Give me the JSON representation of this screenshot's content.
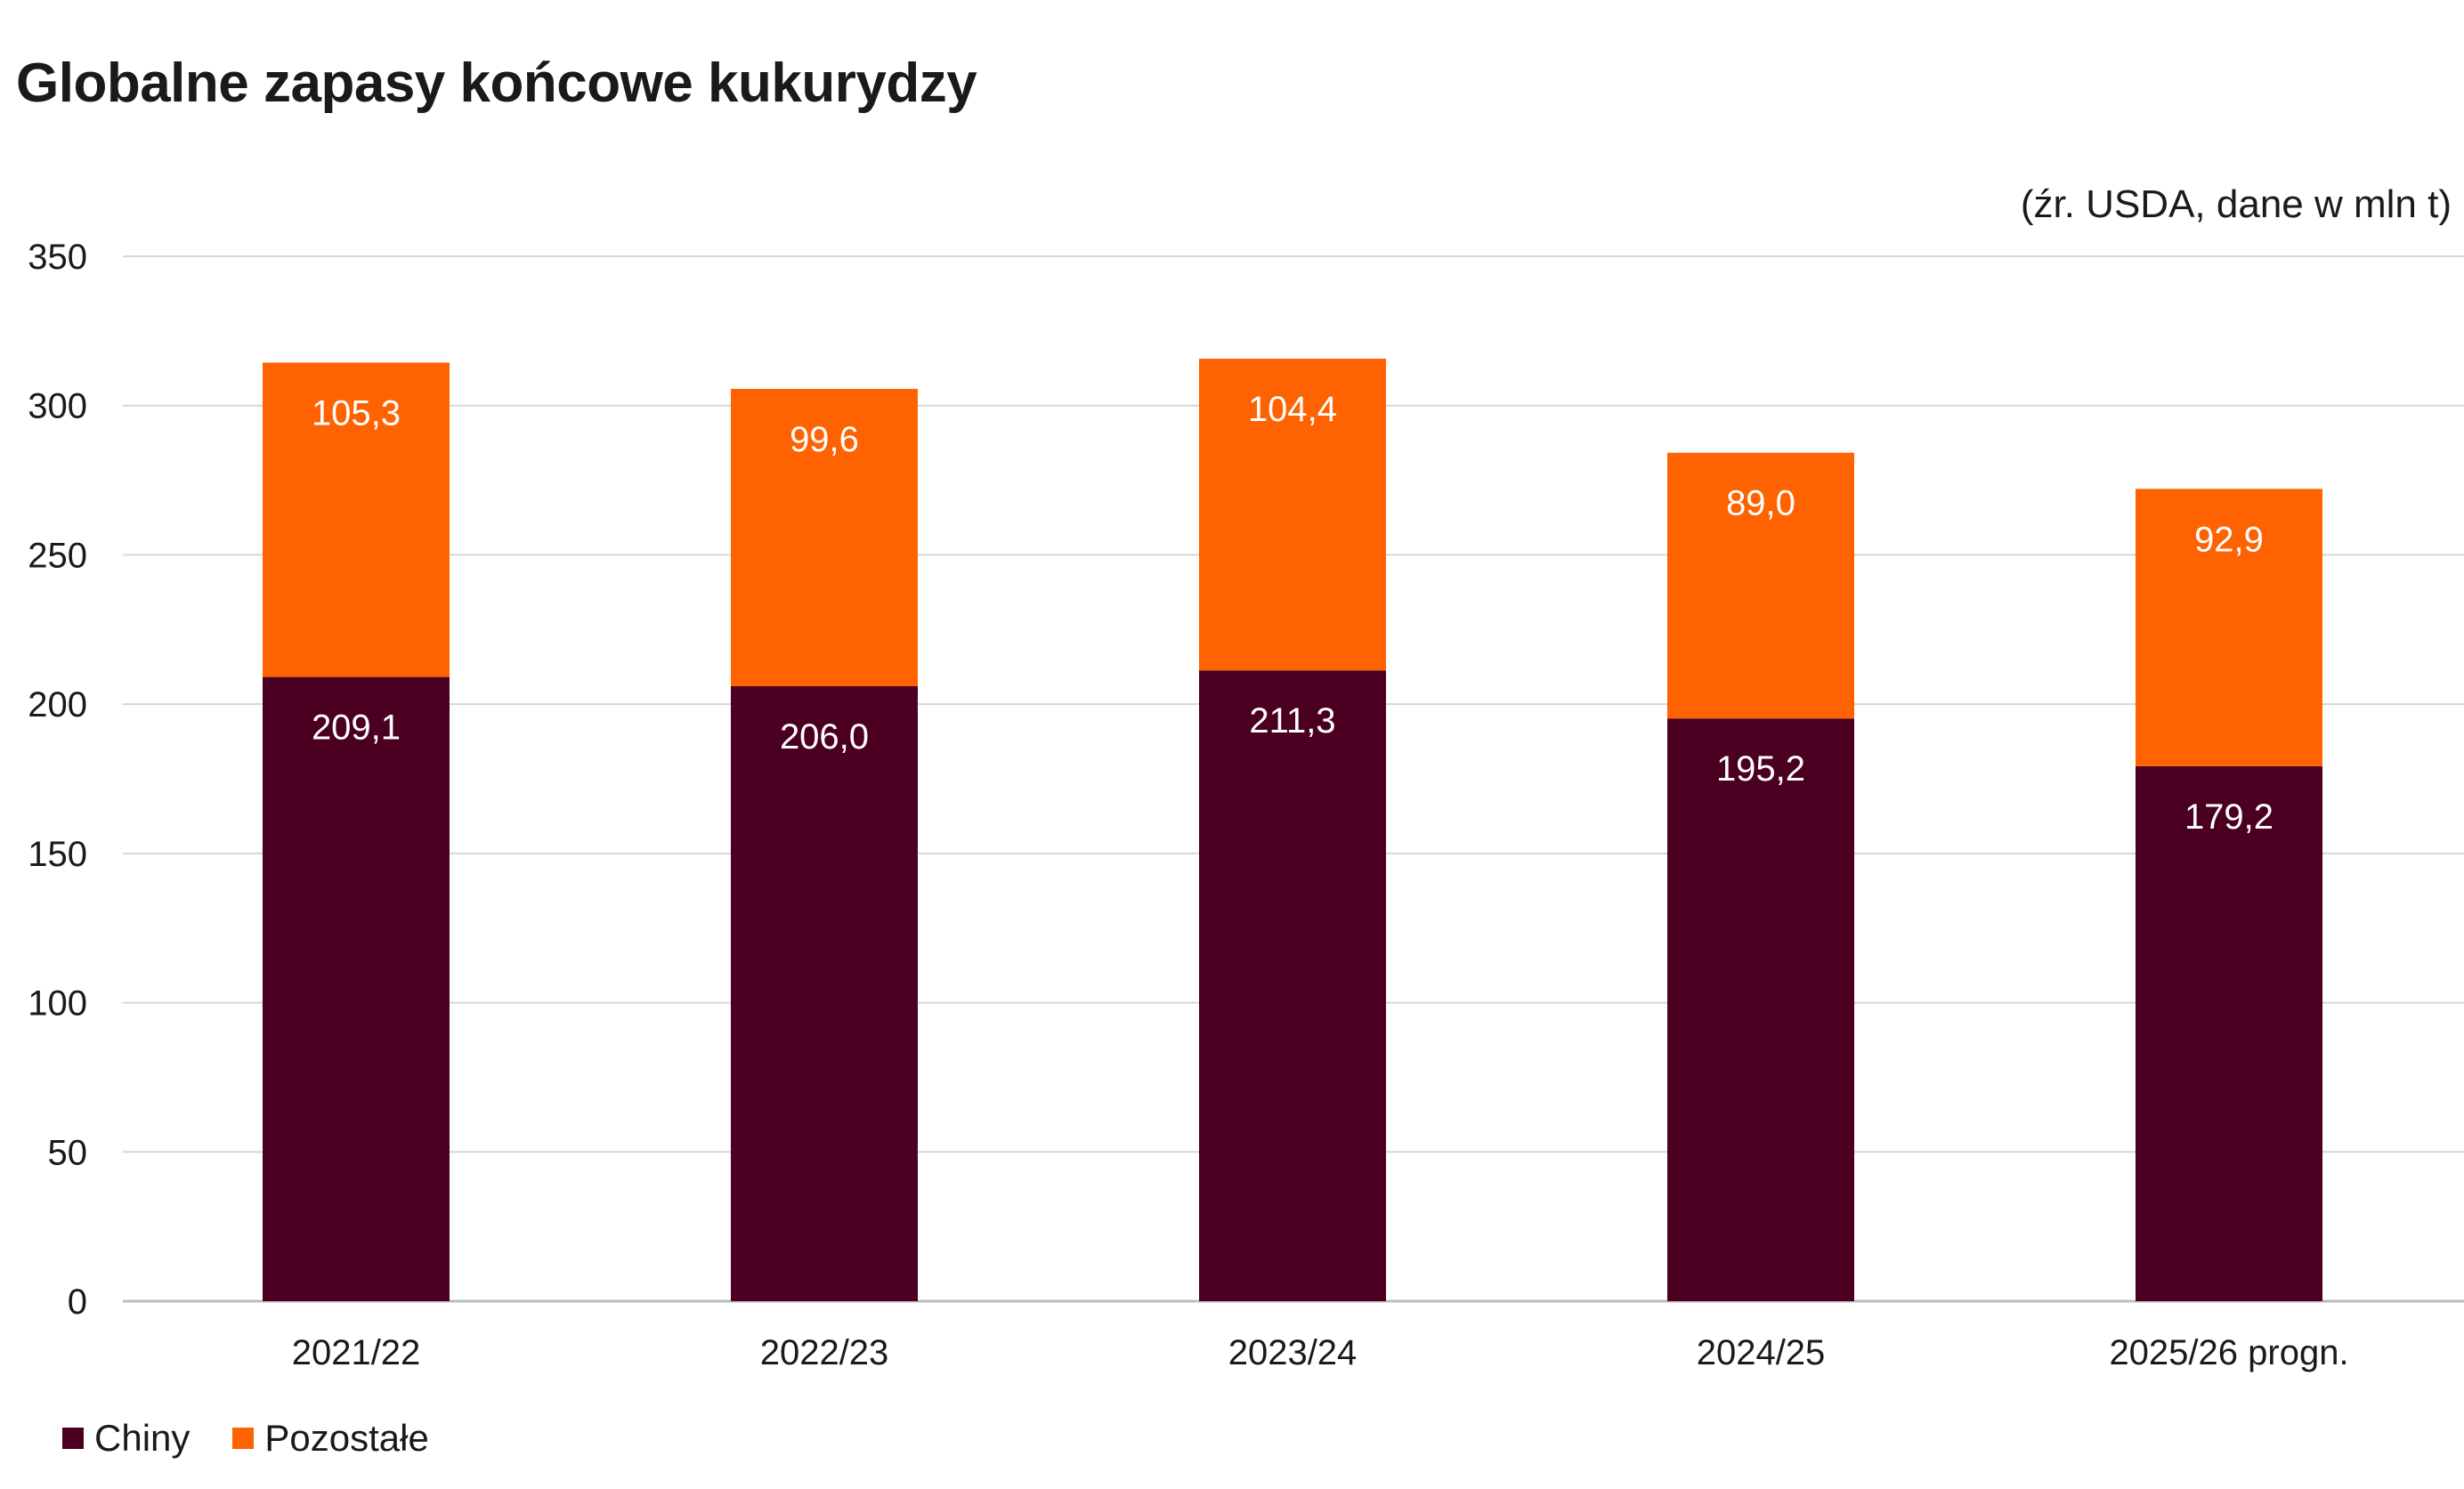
{
  "chart_data": {
    "type": "bar",
    "stacked": true,
    "title": "Globalne zapasy końcowe kukurydzy",
    "source_note": "(źr. USDA, dane w mln t)",
    "categories": [
      "2021/22",
      "2022/23",
      "2023/24",
      "2024/25",
      "2025/26 progn."
    ],
    "series": [
      {
        "name": "Chiny",
        "color": "#4b0021",
        "values": [
          209.1,
          206.0,
          211.3,
          195.2,
          179.2
        ],
        "labels": [
          "209,1",
          "206,0",
          "211,3",
          "195,2",
          "179,2"
        ]
      },
      {
        "name": "Pozostałe",
        "color": "#ff6200",
        "values": [
          105.3,
          99.6,
          104.4,
          89.0,
          92.9
        ],
        "labels": [
          "105,3",
          "99,6",
          "104,4",
          "89,0",
          "92,9"
        ]
      }
    ],
    "ylim": [
      0,
      350
    ],
    "yticks": [
      "0",
      "50",
      "100",
      "150",
      "200",
      "250",
      "300",
      "350"
    ],
    "grid": true,
    "legend_position": "bottom-left"
  }
}
